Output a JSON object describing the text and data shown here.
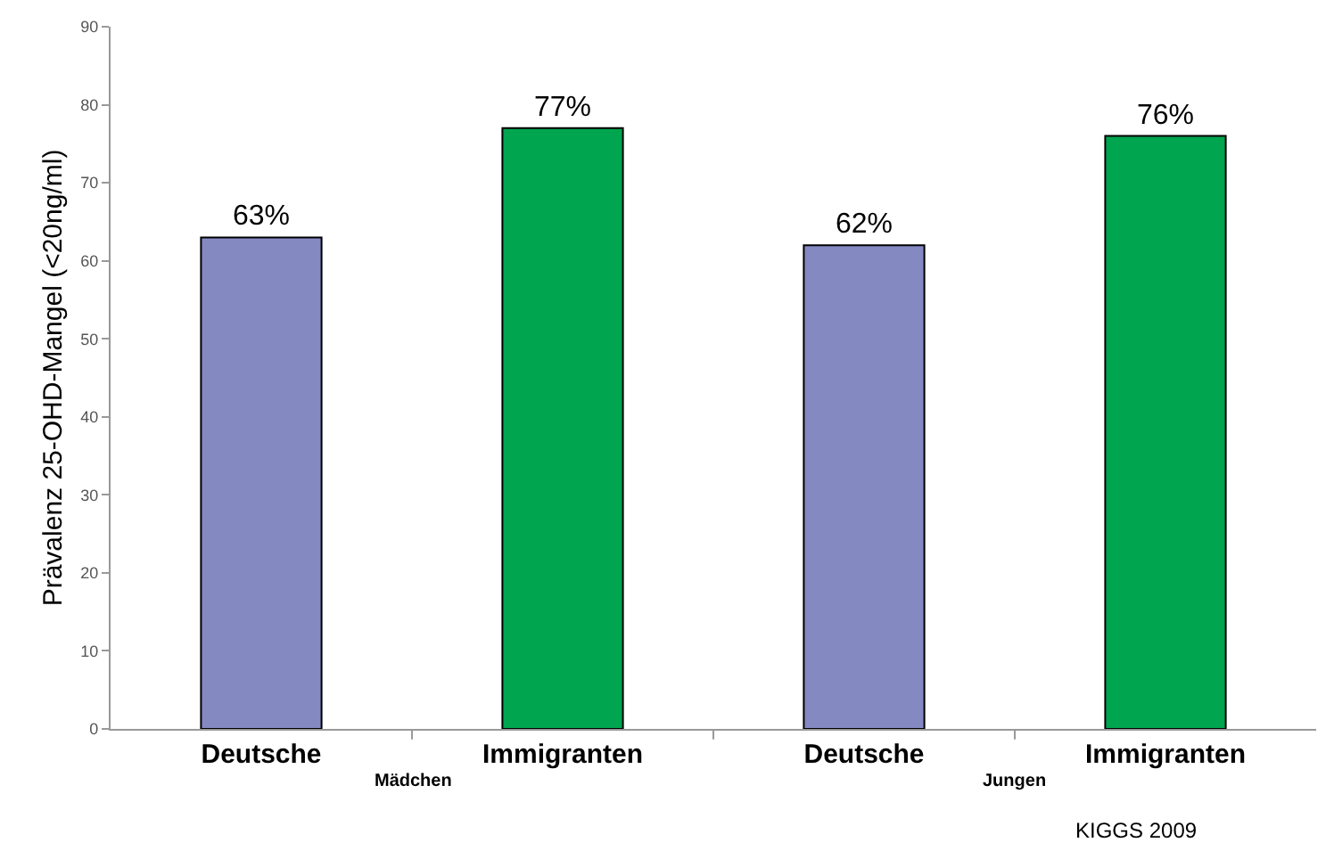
{
  "chart_data": {
    "type": "bar",
    "ylabel": "Prävalenz 25-OHD-Mangel (<20ng/ml)",
    "categories": [
      "Deutsche",
      "Immigranten",
      "Deutsche",
      "Immigranten"
    ],
    "values": [
      63,
      77,
      62,
      76
    ],
    "colors": [
      "#8489c2",
      "#00a54f",
      "#8489c2",
      "#00a54f"
    ],
    "value_labels": [
      "63%",
      "77%",
      "62%",
      "76%"
    ],
    "ylim": [
      0,
      90
    ],
    "yticks": [
      0,
      10,
      20,
      30,
      40,
      50,
      60,
      70,
      80,
      90
    ],
    "annotations": [
      "Mädchen",
      "Jungen",
      "KIGGS 2009"
    ],
    "legend": false
  }
}
